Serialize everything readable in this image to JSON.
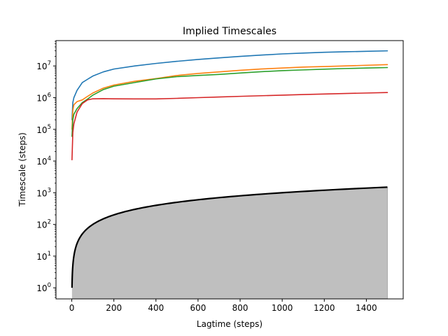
{
  "chart_data": {
    "type": "line",
    "title": "Implied Timescales",
    "xlabel": "Lagtime (steps)",
    "ylabel": "Timescale (steps)",
    "xlim": [
      -75,
      1575
    ],
    "ylim_log10": [
      -0.35,
      7.8
    ],
    "yscale": "log",
    "grid": false,
    "x_ticks": [
      0,
      200,
      400,
      600,
      800,
      1000,
      1200,
      1400
    ],
    "x_tick_labels": [
      "0",
      "200",
      "400",
      "600",
      "800",
      "1000",
      "1200",
      "1400"
    ],
    "y_tick_exponents": [
      0,
      1,
      2,
      3,
      4,
      5,
      6,
      7
    ],
    "y_tick_base": "10",
    "series": [
      {
        "color": "#1f77b4",
        "points": [
          [
            1,
            200000
          ],
          [
            5,
            700000
          ],
          [
            10,
            1000000
          ],
          [
            25,
            1700000
          ],
          [
            50,
            3000000
          ],
          [
            75,
            3800000
          ],
          [
            100,
            4800000
          ],
          [
            150,
            6500000
          ],
          [
            200,
            8000000
          ],
          [
            300,
            10000000
          ],
          [
            400,
            12000000
          ],
          [
            500,
            14000000
          ],
          [
            600,
            16000000
          ],
          [
            700,
            18000000
          ],
          [
            800,
            20000000
          ],
          [
            900,
            22000000
          ],
          [
            1000,
            24000000
          ],
          [
            1100,
            25500000
          ],
          [
            1200,
            27000000
          ],
          [
            1300,
            28000000
          ],
          [
            1400,
            29000000
          ],
          [
            1500,
            30000000
          ]
        ]
      },
      {
        "color": "#ff7f0e",
        "points": [
          [
            1,
            100000
          ],
          [
            5,
            400000
          ],
          [
            10,
            600000
          ],
          [
            25,
            750000
          ],
          [
            50,
            850000
          ],
          [
            75,
            1100000
          ],
          [
            100,
            1400000
          ],
          [
            150,
            2000000
          ],
          [
            200,
            2500000
          ],
          [
            300,
            3300000
          ],
          [
            400,
            4000000
          ],
          [
            500,
            5000000
          ],
          [
            600,
            5800000
          ],
          [
            700,
            6500000
          ],
          [
            800,
            7300000
          ],
          [
            900,
            8000000
          ],
          [
            1000,
            8600000
          ],
          [
            1100,
            9200000
          ],
          [
            1200,
            9600000
          ],
          [
            1300,
            10000000
          ],
          [
            1400,
            10500000
          ],
          [
            1500,
            11000000
          ]
        ]
      },
      {
        "color": "#2ca02c",
        "points": [
          [
            1,
            60000
          ],
          [
            5,
            200000
          ],
          [
            10,
            300000
          ],
          [
            25,
            450000
          ],
          [
            50,
            700000
          ],
          [
            75,
            900000
          ],
          [
            100,
            1200000
          ],
          [
            150,
            1800000
          ],
          [
            200,
            2300000
          ],
          [
            300,
            3000000
          ],
          [
            400,
            3900000
          ],
          [
            500,
            4600000
          ],
          [
            600,
            5000000
          ],
          [
            700,
            5400000
          ],
          [
            800,
            6000000
          ],
          [
            900,
            6600000
          ],
          [
            1000,
            7100000
          ],
          [
            1100,
            7500000
          ],
          [
            1200,
            7900000
          ],
          [
            1300,
            8300000
          ],
          [
            1400,
            8600000
          ],
          [
            1500,
            8900000
          ]
        ]
      },
      {
        "color": "#d62728",
        "points": [
          [
            1,
            11000
          ],
          [
            5,
            80000
          ],
          [
            10,
            150000
          ],
          [
            25,
            350000
          ],
          [
            50,
            650000
          ],
          [
            75,
            850000
          ],
          [
            100,
            920000
          ],
          [
            150,
            930000
          ],
          [
            200,
            920000
          ],
          [
            300,
            910000
          ],
          [
            400,
            910000
          ],
          [
            500,
            950000
          ],
          [
            600,
            1000000
          ],
          [
            700,
            1050000
          ],
          [
            800,
            1100000
          ],
          [
            900,
            1150000
          ],
          [
            1000,
            1200000
          ],
          [
            1100,
            1250000
          ],
          [
            1200,
            1300000
          ],
          [
            1300,
            1350000
          ],
          [
            1400,
            1400000
          ],
          [
            1500,
            1450000
          ]
        ]
      }
    ],
    "reference": {
      "color": "#000000",
      "fill": "#bfbfbf",
      "description_formula": "y = x",
      "x_start": 1,
      "x_end": 1500
    }
  }
}
